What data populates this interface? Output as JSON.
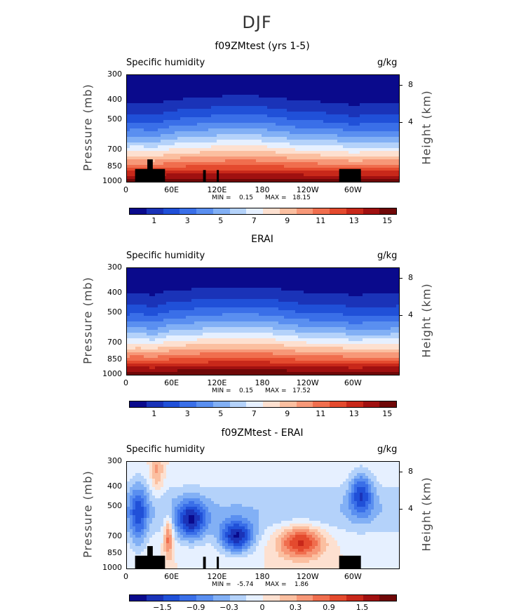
{
  "title": "DJF",
  "chart_data": [
    {
      "type": "heatmap",
      "title": "f09ZMtest (yrs 1-5)",
      "subtitle_left": "Specific humidity",
      "subtitle_right": "g/kg",
      "ylabel": "Pressure (mb)",
      "ylabel_right": "Height (km)",
      "ylim": [
        1000,
        300
      ],
      "pressure_ticks": [
        "300",
        "400",
        "500",
        "700",
        "850",
        "1000"
      ],
      "height_ticks": [
        "8",
        "4"
      ],
      "xlim": [
        0,
        360
      ],
      "x_ticks": [
        "0",
        "60E",
        "120E",
        "180",
        "120W",
        "60W"
      ],
      "min_label": "MIN =    0.15",
      "max_label": "MAX =   18.15",
      "min": 0.15,
      "max": 18.15,
      "colorbar_ticks": [
        "1",
        "3",
        "5",
        "7",
        "9",
        "11",
        "13",
        "15"
      ]
    },
    {
      "type": "heatmap",
      "title": "ERAI",
      "subtitle_left": "Specific humidity",
      "subtitle_right": "g/kg",
      "ylabel": "Pressure (mb)",
      "ylabel_right": "Height (km)",
      "ylim": [
        1000,
        300
      ],
      "pressure_ticks": [
        "300",
        "400",
        "500",
        "700",
        "850",
        "1000"
      ],
      "height_ticks": [
        "8",
        "4"
      ],
      "xlim": [
        0,
        360
      ],
      "x_ticks": [
        "0",
        "60E",
        "120E",
        "180",
        "120W",
        "60W"
      ],
      "min_label": "MIN =    0.15",
      "max_label": "MAX =   17.52",
      "min": 0.15,
      "max": 17.52,
      "colorbar_ticks": [
        "1",
        "3",
        "5",
        "7",
        "9",
        "11",
        "13",
        "15"
      ]
    },
    {
      "type": "heatmap",
      "title": "f09ZMtest - ERAI",
      "subtitle_left": "Specific humidity",
      "subtitle_right": "g/kg",
      "ylabel": "Pressure (mb)",
      "ylabel_right": "Height (km)",
      "ylim": [
        1000,
        300
      ],
      "pressure_ticks": [
        "300",
        "400",
        "500",
        "700",
        "850",
        "1000"
      ],
      "height_ticks": [
        "8",
        "4"
      ],
      "xlim": [
        0,
        360
      ],
      "x_ticks": [
        "0",
        "60E",
        "120E",
        "180",
        "120W",
        "60W"
      ],
      "min_label": "MIN =   -5.74",
      "max_label": "MAX =    1.86",
      "min": -5.74,
      "max": 1.86,
      "colorbar_ticks": [
        "−1.5",
        "−0.9",
        "−0.3",
        "0",
        "0.3",
        "0.9",
        "1.5"
      ]
    }
  ],
  "colorbar_colors": [
    "#0a0a8c",
    "#1a33b8",
    "#2050d8",
    "#3a6fe8",
    "#5a8ff0",
    "#82b0f5",
    "#b4d2fa",
    "#e6f0ff",
    "#fde0d0",
    "#fbbfa0",
    "#f79878",
    "#f06e4e",
    "#e44a2e",
    "#c8281a",
    "#a01010",
    "#700808"
  ]
}
